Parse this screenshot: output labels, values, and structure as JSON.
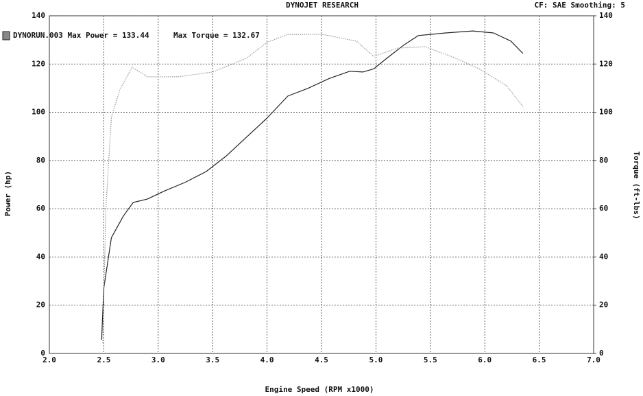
{
  "chart_data": {
    "type": "line",
    "title": "DYNOJET RESEARCH",
    "subtitle": "CF: SAE  Smoothing: 5",
    "annotations": [
      "DYNORUN.003 Max Power = 133.44",
      "Max Torque = 132.67"
    ],
    "x_label": "Engine Speed (RPM x1000)",
    "y_label": "Power (hp)",
    "y2_label": "Torque (ft-lbs)",
    "xlim": [
      2,
      7
    ],
    "xticks": [
      {
        "value": 2,
        "label": "2.0"
      },
      {
        "value": 2.5,
        "label": "2.5"
      },
      {
        "value": 3,
        "label": "3.0"
      },
      {
        "value": 3.5,
        "label": "3.5"
      },
      {
        "value": 4,
        "label": "4.0"
      },
      {
        "value": 4.5,
        "label": "4.5"
      },
      {
        "value": 5,
        "label": "5.0"
      },
      {
        "value": 5.5,
        "label": "5.5"
      },
      {
        "value": 6,
        "label": "6.0"
      },
      {
        "value": 6.5,
        "label": "6.5"
      },
      {
        "value": 7,
        "label": "7.0"
      }
    ],
    "ylim": [
      0,
      140
    ],
    "yticks": [
      0,
      20,
      40,
      60,
      80,
      100,
      120,
      140
    ],
    "y2lim": [
      0,
      140
    ],
    "y2ticks": [
      0,
      20,
      40,
      60,
      80,
      100,
      120,
      140
    ],
    "grid": true,
    "series": [
      {
        "color": "#222222",
        "dash": false,
        "x": [
          2.48,
          2.5,
          2.57,
          2.68,
          2.77,
          2.9,
          3.06,
          3.25,
          3.44,
          3.62,
          3.81,
          4.0,
          4.19,
          4.38,
          4.57,
          4.76,
          4.88,
          4.98,
          5.1,
          5.26,
          5.39,
          5.64,
          5.89,
          6.08,
          6.24,
          6.35
        ],
        "values": [
          5.7,
          27,
          48,
          57,
          62.6,
          64,
          67.4,
          71,
          75.4,
          81.7,
          89.6,
          97.6,
          106.7,
          110,
          114,
          117,
          116.7,
          118,
          122.4,
          128,
          131.8,
          132.9,
          133.7,
          132.9,
          129.5,
          124.4
        ]
      },
      {
        "color": "#9a9a9a",
        "dash": true,
        "axis": "y2",
        "x": [
          2.49,
          2.52,
          2.57,
          2.65,
          2.76,
          2.9,
          3.18,
          3.5,
          3.81,
          4.0,
          4.19,
          4.51,
          4.82,
          4.98,
          5.2,
          5.45,
          5.7,
          5.95,
          6.2,
          6.35
        ],
        "values": [
          4.3,
          61,
          98,
          109.6,
          118.7,
          114.7,
          114.7,
          116.7,
          122.4,
          129,
          132.3,
          132.3,
          129.5,
          123.2,
          126.6,
          127.2,
          123,
          118,
          111,
          102.4
        ]
      }
    ]
  }
}
